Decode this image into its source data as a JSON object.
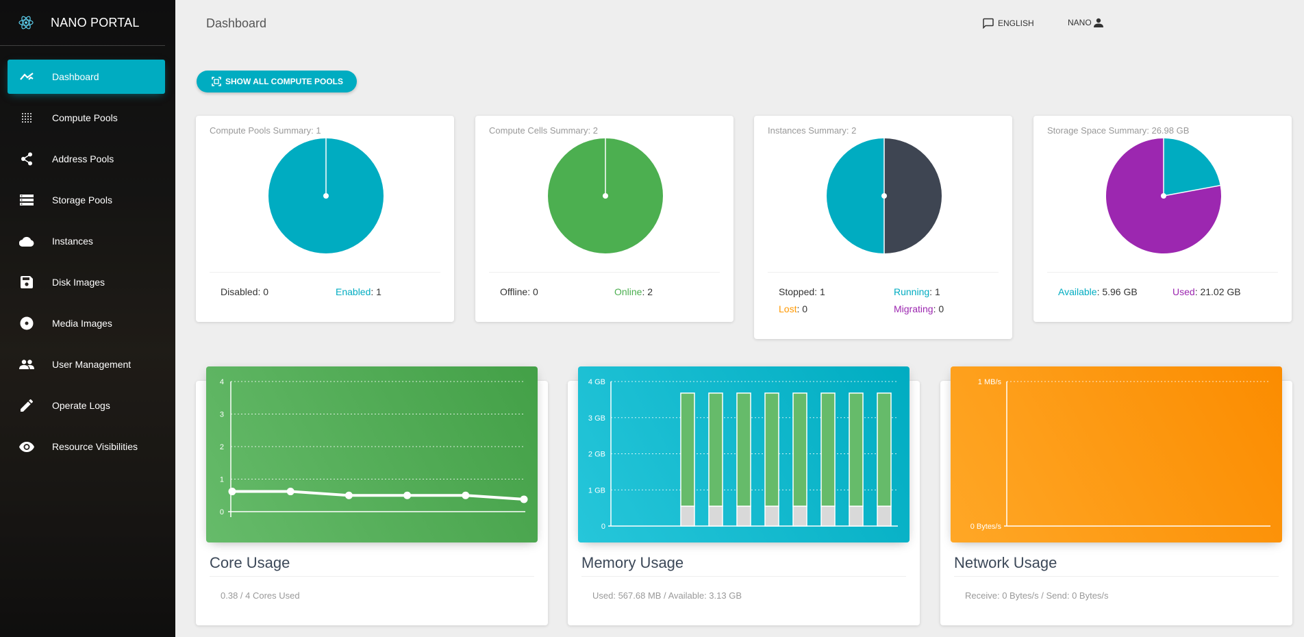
{
  "app": {
    "title": "NANO PORTAL"
  },
  "sidebar": {
    "items": [
      {
        "label": "Dashboard",
        "icon": "timeline-icon",
        "active": true
      },
      {
        "label": "Compute Pools",
        "icon": "grid-dots-icon"
      },
      {
        "label": "Address Pools",
        "icon": "share-icon"
      },
      {
        "label": "Storage Pools",
        "icon": "storage-icon"
      },
      {
        "label": "Instances",
        "icon": "cloud-icon"
      },
      {
        "label": "Disk Images",
        "icon": "save-icon"
      },
      {
        "label": "Media Images",
        "icon": "disc-icon"
      },
      {
        "label": "User Management",
        "icon": "people-icon"
      },
      {
        "label": "Operate Logs",
        "icon": "pencil-icon"
      },
      {
        "label": "Resource Visibilities",
        "icon": "eye-icon"
      }
    ]
  },
  "header": {
    "title": "Dashboard",
    "language": "ENGLISH",
    "user": "NANO"
  },
  "actions": {
    "show_all_pools": "SHOW ALL COMPUTE POOLS"
  },
  "colors": {
    "accent": "#00acc1",
    "green": "#4caf50",
    "orange": "#ff9800",
    "purple": "#9c27b0",
    "dark": "#3e4552"
  },
  "summaries": {
    "pools": {
      "title": "Compute Pools Summary: 1",
      "disabled_label": "Disabled",
      "disabled": "0",
      "enabled_label": "Enabled",
      "enabled": "1"
    },
    "cells": {
      "title": "Compute Cells Summary: 2",
      "offline_label": "Offline",
      "offline": "0",
      "online_label": "Online",
      "online": "2"
    },
    "instances": {
      "title": "Instances Summary: 2",
      "stopped_label": "Stopped",
      "stopped": "1",
      "running_label": "Running",
      "running": "1",
      "lost_label": "Lost",
      "lost": "0",
      "migrating_label": "Migrating",
      "migrating": "0"
    },
    "storage": {
      "title": "Storage Space Summary: 26.98 GB",
      "available_label": "Available",
      "available": "5.96 GB",
      "used_label": "Used",
      "used": "21.02 GB"
    }
  },
  "usage": {
    "core": {
      "title": "Core Usage",
      "footer": "0.38 / 4 Cores Used"
    },
    "memory": {
      "title": "Memory Usage",
      "footer": "Used: 567.68 MB / Available: 3.13 GB"
    },
    "network": {
      "title": "Network Usage",
      "footer": "Receive: 0 Bytes/s / Send: 0 Bytes/s"
    }
  },
  "chart_data": [
    {
      "type": "pie",
      "values": [
        0,
        1
      ],
      "colors": [
        "#ccc",
        "#00acc1"
      ]
    },
    {
      "type": "pie",
      "values": [
        0,
        2
      ],
      "colors": [
        "#ccc",
        "#4caf50"
      ]
    },
    {
      "type": "pie",
      "values": [
        1,
        1
      ],
      "colors": [
        "#3e4552",
        "#00acc1"
      ]
    },
    {
      "type": "pie",
      "values": [
        5.96,
        21.02
      ],
      "colors": [
        "#00acc1",
        "#9c27b0"
      ]
    },
    {
      "type": "line",
      "ylim": [
        0,
        4
      ],
      "yticks": [
        "0",
        "1",
        "2",
        "3",
        "4"
      ],
      "values": [
        0.62,
        0.62,
        0.5,
        0.5,
        0.5,
        0.38
      ]
    },
    {
      "type": "bar",
      "stacked": true,
      "ylim": [
        0,
        4
      ],
      "yticks": [
        "0",
        "1 GB",
        "2 GB",
        "3 GB",
        "4 GB"
      ],
      "series": [
        {
          "values": [
            0.55,
            0.55,
            0.55,
            0.55,
            0.55,
            0.55,
            0.55,
            0.55
          ]
        },
        {
          "values": [
            3.13,
            3.13,
            3.13,
            3.13,
            3.13,
            3.13,
            3.13,
            3.13
          ]
        }
      ]
    },
    {
      "type": "line",
      "yticks": [
        "0 Bytes/s",
        "1 MB/s"
      ],
      "values": []
    }
  ]
}
